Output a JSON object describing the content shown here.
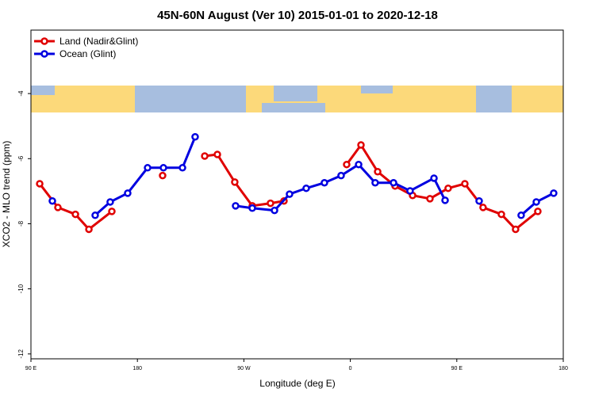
{
  "chart_data": {
    "type": "line",
    "title": "45N-60N August (Ver 10)   2015-01-01 to 2020-12-18",
    "x_label": "Longitude (deg E)",
    "y_label": "XCO2 - MLO trend (ppm)",
    "xlim": [
      90,
      540
    ],
    "ylim": [
      -12.15,
      -2.05
    ],
    "xticks": [
      {
        "value": 90,
        "label": "90 E"
      },
      180,
      {
        "value": 270,
        "label": "90 W"
      },
      {
        "value": 360,
        "label": "0"
      },
      {
        "value": 450,
        "label": "90 E"
      },
      {
        "value": 540,
        "label": "180"
      }
    ],
    "yticks": [
      -12,
      -10,
      -8,
      -6,
      -4
    ],
    "legend": "top-left",
    "series": [
      {
        "name": "Land (Nadir&Glint)",
        "color": "#e00000",
        "x": [
          97.4,
          112.8,
          127.6,
          139.0,
          158.4,
          null,
          201.3,
          null,
          236.9,
          247.6,
          262.3,
          277.1,
          292.5,
          303.9,
          null,
          356.9,
          369.0,
          383.1,
          397.8,
          412.6,
          427.3,
          442.7,
          456.8,
          472.2,
          487.7,
          499.7,
          518.5
        ],
        "values": [
          -6.77,
          -7.5,
          -7.71,
          -8.17,
          -7.62,
          null,
          -6.52,
          null,
          -5.92,
          -5.87,
          -6.72,
          -7.45,
          -7.37,
          -7.3,
          null,
          -6.18,
          -5.58,
          -6.4,
          -6.84,
          -7.13,
          -7.23,
          -6.91,
          -6.77,
          -7.5,
          -7.71,
          -8.17,
          -7.62
        ]
      },
      {
        "name": "Ocean (Glint)",
        "color": "#0000e0",
        "x": [
          108.1,
          null,
          144.3,
          157.0,
          171.8,
          188.6,
          202.0,
          218.1,
          228.8,
          null,
          263.0,
          277.1,
          295.9,
          308.6,
          322.7,
          338.1,
          352.2,
          367.0,
          381.0,
          396.5,
          410.5,
          430.7,
          440.1,
          null,
          468.9,
          null,
          504.4,
          517.2,
          531.9
        ],
        "values": [
          -7.3,
          null,
          -7.74,
          -7.33,
          -7.06,
          -6.28,
          -6.28,
          -6.28,
          -5.33,
          null,
          -7.45,
          -7.52,
          -7.59,
          -7.09,
          -6.91,
          -6.74,
          -6.52,
          -6.18,
          -6.74,
          -6.74,
          -6.99,
          -6.6,
          -7.28,
          null,
          -7.3,
          null,
          -7.74,
          -7.33,
          -7.06
        ]
      }
    ]
  }
}
